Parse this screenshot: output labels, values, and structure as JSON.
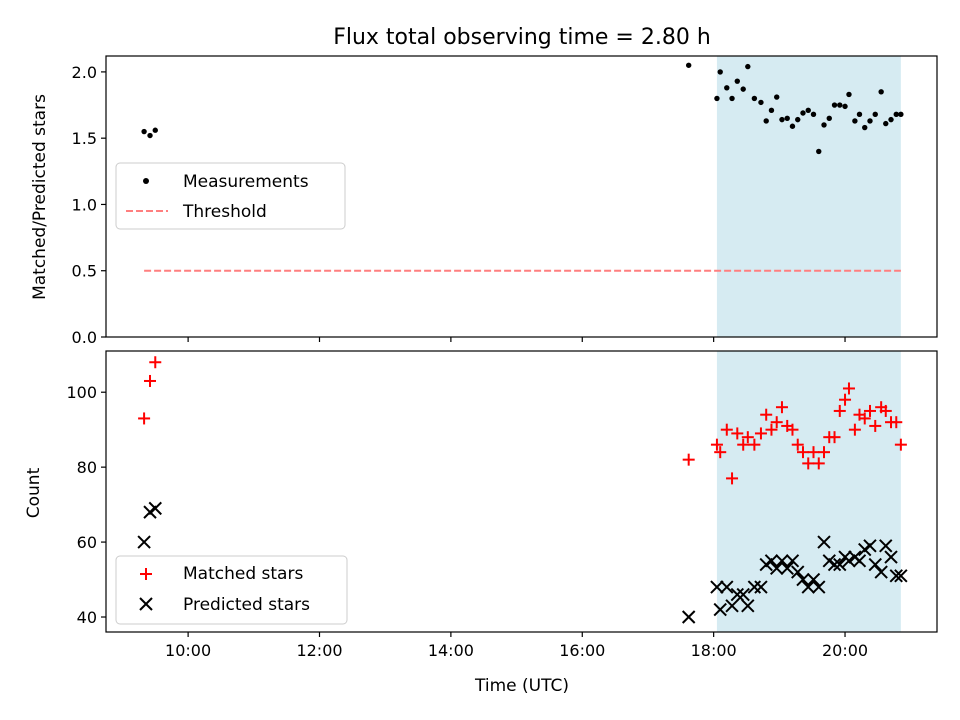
{
  "chart_data": [
    {
      "type": "scatter",
      "panel": "top",
      "title": "Flux total observing time = 2.80 h",
      "xlabel": "",
      "ylabel": "Matched/Predicted stars",
      "xlim": [
        8.75,
        21.4
      ],
      "ylim": [
        0.0,
        2.12
      ],
      "xticks": [
        "10:00",
        "12:00",
        "14:00",
        "16:00",
        "18:00",
        "20:00"
      ],
      "yticks": [
        "0.0",
        "0.5",
        "1.0",
        "1.5",
        "2.0"
      ],
      "shaded_span_hours": [
        18.05,
        20.85
      ],
      "series": [
        {
          "name": "Measurements",
          "marker": "dot",
          "color": "#000000",
          "x": [
            9.33,
            9.42,
            9.5,
            17.62,
            18.05,
            18.1,
            18.2,
            18.28,
            18.36,
            18.45,
            18.52,
            18.62,
            18.72,
            18.8,
            18.88,
            18.96,
            19.04,
            19.12,
            19.2,
            19.28,
            19.36,
            19.44,
            19.52,
            19.6,
            19.68,
            19.76,
            19.84,
            19.92,
            20.0,
            20.06,
            20.15,
            20.22,
            20.3,
            20.38,
            20.46,
            20.55,
            20.62,
            20.7,
            20.78,
            20.85
          ],
          "y": [
            1.55,
            1.52,
            1.56,
            2.05,
            1.8,
            2.0,
            1.88,
            1.8,
            1.93,
            1.87,
            2.04,
            1.8,
            1.77,
            1.63,
            1.71,
            1.81,
            1.64,
            1.65,
            1.59,
            1.64,
            1.69,
            1.71,
            1.68,
            1.4,
            1.6,
            1.65,
            1.75,
            1.75,
            1.74,
            1.83,
            1.63,
            1.68,
            1.58,
            1.63,
            1.68,
            1.85,
            1.61,
            1.64,
            1.68,
            1.68
          ]
        },
        {
          "name": "Threshold",
          "style": "dashed",
          "color": "#ff7f7f",
          "x": [
            9.33,
            20.85
          ],
          "y": [
            0.5,
            0.5
          ]
        }
      ],
      "legend": [
        "Measurements",
        "Threshold"
      ],
      "legend_position": "center-left"
    },
    {
      "type": "scatter",
      "panel": "bottom",
      "xlabel": "Time (UTC)",
      "ylabel": "Count",
      "xlim": [
        8.75,
        21.4
      ],
      "ylim": [
        36,
        111
      ],
      "xticks": [
        "10:00",
        "12:00",
        "14:00",
        "16:00",
        "18:00",
        "20:00"
      ],
      "yticks": [
        "40",
        "60",
        "80",
        "100"
      ],
      "shaded_span_hours": [
        18.05,
        20.85
      ],
      "series": [
        {
          "name": "Matched stars",
          "marker": "plus",
          "color": "#ff0000",
          "x": [
            9.33,
            9.42,
            9.5,
            17.62,
            18.05,
            18.1,
            18.2,
            18.28,
            18.36,
            18.45,
            18.52,
            18.62,
            18.72,
            18.8,
            18.88,
            18.96,
            19.04,
            19.12,
            19.2,
            19.28,
            19.36,
            19.44,
            19.52,
            19.6,
            19.68,
            19.76,
            19.84,
            19.92,
            20.0,
            20.06,
            20.15,
            20.22,
            20.3,
            20.38,
            20.46,
            20.55,
            20.62,
            20.7,
            20.78,
            20.85
          ],
          "y": [
            93,
            103,
            108,
            82,
            86,
            84,
            90,
            77,
            89,
            86,
            88,
            86,
            89,
            94,
            90,
            92,
            96,
            91,
            90,
            86,
            84,
            81,
            84,
            81,
            84,
            88,
            88,
            95,
            98,
            101,
            90,
            94,
            93,
            95,
            91,
            96,
            95,
            92,
            92,
            86
          ]
        },
        {
          "name": "Predicted stars",
          "marker": "x",
          "color": "#000000",
          "x": [
            9.33,
            9.42,
            9.5,
            17.62,
            18.05,
            18.1,
            18.2,
            18.28,
            18.36,
            18.45,
            18.52,
            18.62,
            18.72,
            18.8,
            18.88,
            18.96,
            19.04,
            19.12,
            19.2,
            19.28,
            19.36,
            19.44,
            19.52,
            19.6,
            19.68,
            19.76,
            19.84,
            19.92,
            20.0,
            20.06,
            20.15,
            20.22,
            20.3,
            20.38,
            20.46,
            20.55,
            20.62,
            20.7,
            20.78,
            20.85
          ],
          "y": [
            60,
            68,
            69,
            40,
            48,
            42,
            48,
            43,
            46,
            46,
            43,
            48,
            48,
            54,
            55,
            53,
            55,
            53,
            55,
            52,
            50,
            48,
            50,
            48,
            60,
            55,
            54,
            54,
            56,
            55,
            56,
            55,
            58,
            59,
            54,
            52,
            59,
            56,
            51,
            51
          ]
        }
      ],
      "legend": [
        "Matched stars",
        "Predicted stars"
      ],
      "legend_position": "lower-left"
    }
  ]
}
